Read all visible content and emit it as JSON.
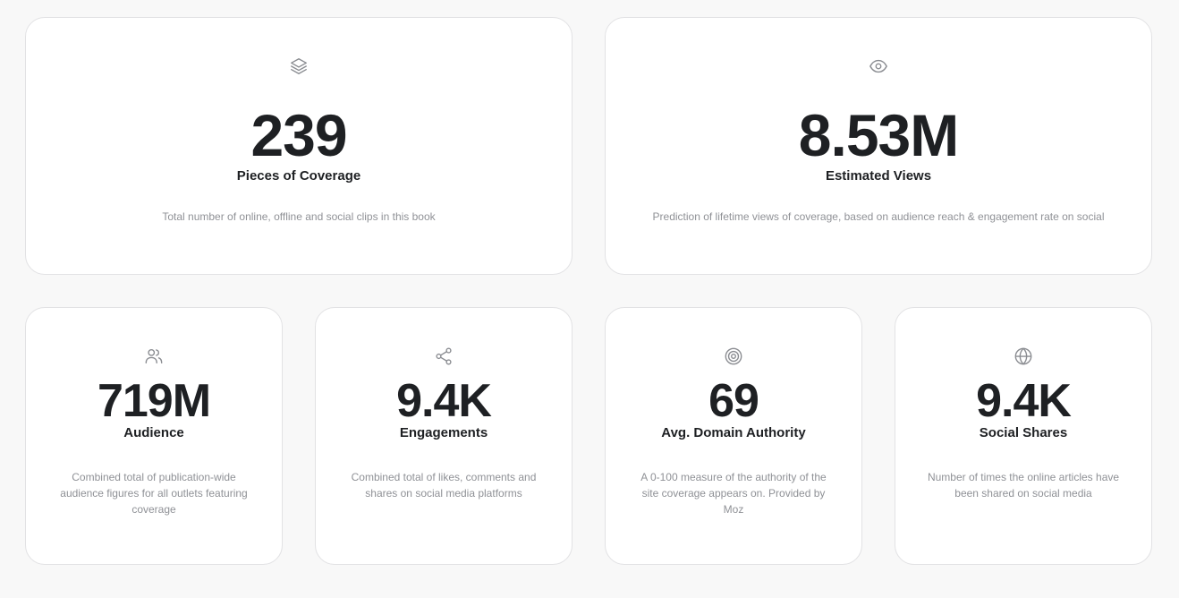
{
  "top_cards": [
    {
      "icon": "layers-icon",
      "value": "239",
      "label": "Pieces of Coverage",
      "description": "Total number of online, offline and social clips in this book"
    },
    {
      "icon": "eye-icon",
      "value": "8.53M",
      "label": "Estimated Views",
      "description": "Prediction of lifetime views of coverage, based on audience reach & engagement rate on social"
    }
  ],
  "bottom_cards": [
    {
      "icon": "users-icon",
      "value": "719M",
      "label": "Audience",
      "description": "Combined total of publication-wide audience figures for all outlets featuring coverage"
    },
    {
      "icon": "share-icon",
      "value": "9.4K",
      "label": "Engagements",
      "description": "Combined total of likes, comments and shares on social media platforms"
    },
    {
      "icon": "target-icon",
      "value": "69",
      "label": "Avg. Domain Authority",
      "description": "A 0-100 measure of the authority of the site coverage appears on. Provided by Moz"
    },
    {
      "icon": "globe-icon",
      "value": "9.4K",
      "label": "Social Shares",
      "description": "Number of times the online articles have been shared on social media"
    }
  ],
  "colors": {
    "background": "#f8f8f8",
    "card": "#ffffff",
    "border": "#e2e2e4",
    "value_text": "#1e2023",
    "description_text": "#8f9196",
    "icon": "#8a8c91"
  }
}
